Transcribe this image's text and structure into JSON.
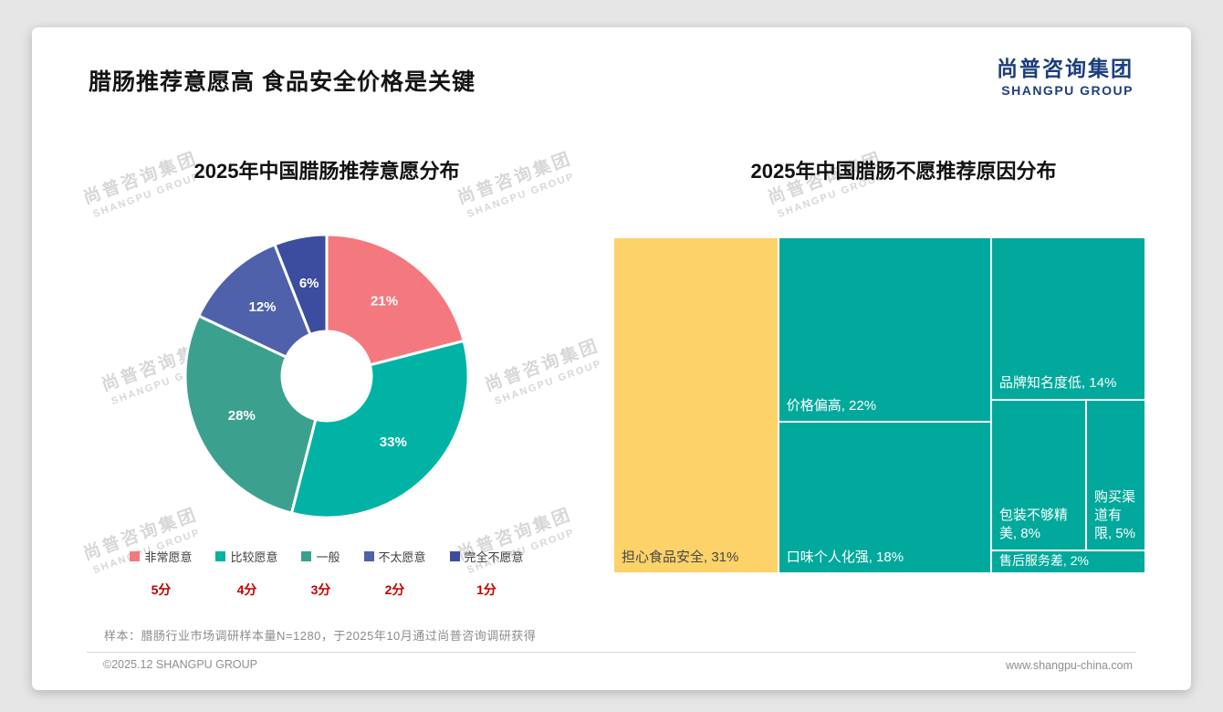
{
  "page": {
    "background": "#e6e6e6",
    "card_background": "#ffffff"
  },
  "header": {
    "title": "腊肠推荐意愿高 食品安全价格是关键",
    "logo": {
      "cn": "尚普咨询集团",
      "en": "SHANGPU GROUP",
      "color": "#1d3e7c"
    }
  },
  "watermark": {
    "cn": "尚普咨询集团",
    "en": "SHANGPU GROUP"
  },
  "chart_data": [
    {
      "type": "pie",
      "donut": true,
      "title": "2025年中国腊肠推荐意愿分布",
      "unit": "%",
      "legend_position": "bottom",
      "series": [
        {
          "label": "非常愿意",
          "score": "5分",
          "value": 21,
          "color": "#f4797f"
        },
        {
          "label": "比较愿意",
          "score": "4分",
          "value": 33,
          "color": "#00b3a4"
        },
        {
          "label": "一般",
          "score": "3分",
          "value": 28,
          "color": "#3ba18e"
        },
        {
          "label": "不太愿意",
          "score": "2分",
          "value": 12,
          "color": "#4f61ab"
        },
        {
          "label": "完全不愿意",
          "score": "1分",
          "value": 6,
          "color": "#3c4c9f"
        }
      ]
    },
    {
      "type": "treemap",
      "title": "2025年中国腊肠不愿推荐原因分布",
      "unit": "%",
      "items": [
        {
          "label": "担心食品安全",
          "value": 31,
          "color": "#fcd269",
          "text_color": "#474747"
        },
        {
          "label": "价格偏高",
          "value": 22,
          "color": "#00a99b",
          "text_color": "#ffffff"
        },
        {
          "label": "口味个人化强",
          "value": 18,
          "color": "#00a99b",
          "text_color": "#ffffff"
        },
        {
          "label": "品牌知名度低",
          "value": 14,
          "color": "#00a99b",
          "text_color": "#ffffff"
        },
        {
          "label": "包装不够精美",
          "value": 8,
          "color": "#00a99b",
          "text_color": "#ffffff"
        },
        {
          "label": "购买渠道有限",
          "value": 5,
          "color": "#00a99b",
          "text_color": "#ffffff"
        },
        {
          "label": "售后服务差",
          "value": 2,
          "color": "#00a99b",
          "text_color": "#ffffff"
        }
      ]
    }
  ],
  "legend": {
    "score_color": "#c00000"
  },
  "footnote": "样本：腊肠行业市场调研样本量N=1280，于2025年10月通过尚普咨询调研获得",
  "footer": {
    "left": "©2025.12 SHANGPU GROUP",
    "right": "www.shangpu-china.com"
  }
}
